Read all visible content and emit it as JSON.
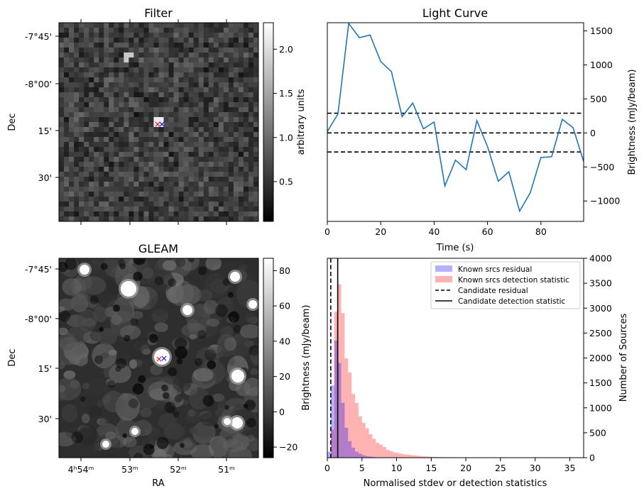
{
  "chart_data": [
    {
      "type": "heatmap",
      "title": "Filter",
      "ylabel": "Dec",
      "yticks": [
        "-7°45'",
        "-8°00'",
        "15'",
        "30'"
      ],
      "colorbar_label": "arbitrary units",
      "colorbar_ticks": [
        "0.5",
        "1.0",
        "1.5",
        "2.0"
      ],
      "colorbar_range": [
        0.05,
        2.3
      ],
      "colormap": "gray",
      "markers": [
        {
          "symbol": "×",
          "color": "#ff0000"
        },
        {
          "symbol": "×",
          "color": "#0000ff"
        }
      ]
    },
    {
      "type": "line",
      "title": "Light Curve",
      "xlabel": "Time (s)",
      "ylabel": "Brightness (mJy/beam)",
      "xticks": [
        "0",
        "20",
        "40",
        "60",
        "80"
      ],
      "yticks": [
        "−1000",
        "−500",
        "0",
        "500",
        "1000",
        "1500"
      ],
      "xlim": [
        0,
        96
      ],
      "ylim": [
        -1300,
        1620
      ],
      "color": "#1f77b4",
      "series": [
        {
          "x": [
            0,
            4,
            8,
            12,
            16,
            20,
            24,
            28,
            32,
            36,
            40,
            44,
            48,
            52,
            56,
            60,
            64,
            68,
            72,
            76,
            80,
            84,
            88,
            92,
            96
          ],
          "y": [
            20,
            280,
            1610,
            1400,
            1440,
            1050,
            900,
            240,
            440,
            60,
            160,
            -780,
            -400,
            -540,
            180,
            -200,
            -710,
            -570,
            -1150,
            -880,
            -360,
            -350,
            200,
            80,
            -420
          ]
        }
      ],
      "hlines": [
        290,
        0,
        -280
      ],
      "hline_style": "dashed"
    },
    {
      "type": "heatmap",
      "title": "GLEAM",
      "xlabel": "RA",
      "ylabel": "Dec",
      "xticks": [
        "4ʰ54ᵐ",
        "53ᵐ",
        "52ᵐ",
        "51ᵐ"
      ],
      "yticks": [
        "-7°45'",
        "-8°00'",
        "15'",
        "30'"
      ],
      "colorbar_label": "Brightness (mJy/beam)",
      "colorbar_ticks": [
        "−20",
        "0",
        "20",
        "40",
        "60",
        "80"
      ],
      "colorbar_range": [
        -26,
        87
      ],
      "colormap": "gray",
      "markers": [
        {
          "symbol": "×",
          "color": "#ff0000"
        },
        {
          "symbol": "×",
          "color": "#0000ff"
        }
      ]
    },
    {
      "type": "bar",
      "subtype": "histogram",
      "xlabel": "Normalised stdev or detection statistics",
      "ylabel": "Number of Sources",
      "xticks": [
        "0",
        "5",
        "10",
        "15",
        "20",
        "25",
        "30",
        "35"
      ],
      "yticks": [
        "0",
        "500",
        "1000",
        "1500",
        "2000",
        "2500",
        "3000",
        "3500",
        "4000"
      ],
      "xlim": [
        0,
        37
      ],
      "ylim": [
        0,
        4000
      ],
      "bin_width": 0.5,
      "legend_position": "top-right",
      "series": [
        {
          "name": "Known srcs residual",
          "color": "#0000ff",
          "bin_start": 0,
          "values": [
            120,
            1450,
            2350,
            1900,
            1100,
            600,
            330,
            200,
            120,
            80,
            50,
            30,
            20,
            12,
            8,
            5,
            3,
            2,
            1
          ]
        },
        {
          "name": "Known srcs detection statistic",
          "color": "#ff0000",
          "bin_start": 0,
          "values": [
            0,
            560,
            2930,
            3480,
            2900,
            1990,
            1710,
            1280,
            1100,
            830,
            700,
            590,
            470,
            380,
            300,
            265,
            215,
            155,
            130,
            105,
            95,
            80,
            65,
            60,
            50,
            45,
            35,
            30,
            25,
            20,
            18,
            15,
            12,
            10,
            10,
            8,
            8,
            6,
            6,
            5,
            5,
            4,
            4,
            3,
            3,
            3,
            2,
            2,
            2,
            2,
            2,
            2,
            1,
            1,
            1,
            1,
            1,
            1,
            1,
            1
          ]
        }
      ],
      "vlines": [
        {
          "name": "Candidate residual",
          "x": 0.5,
          "style": "dashed"
        },
        {
          "name": "Candidate detection statistic",
          "x": 1.5,
          "style": "solid"
        }
      ],
      "left_axis_label": "Brightness (mJy/beam)"
    }
  ]
}
